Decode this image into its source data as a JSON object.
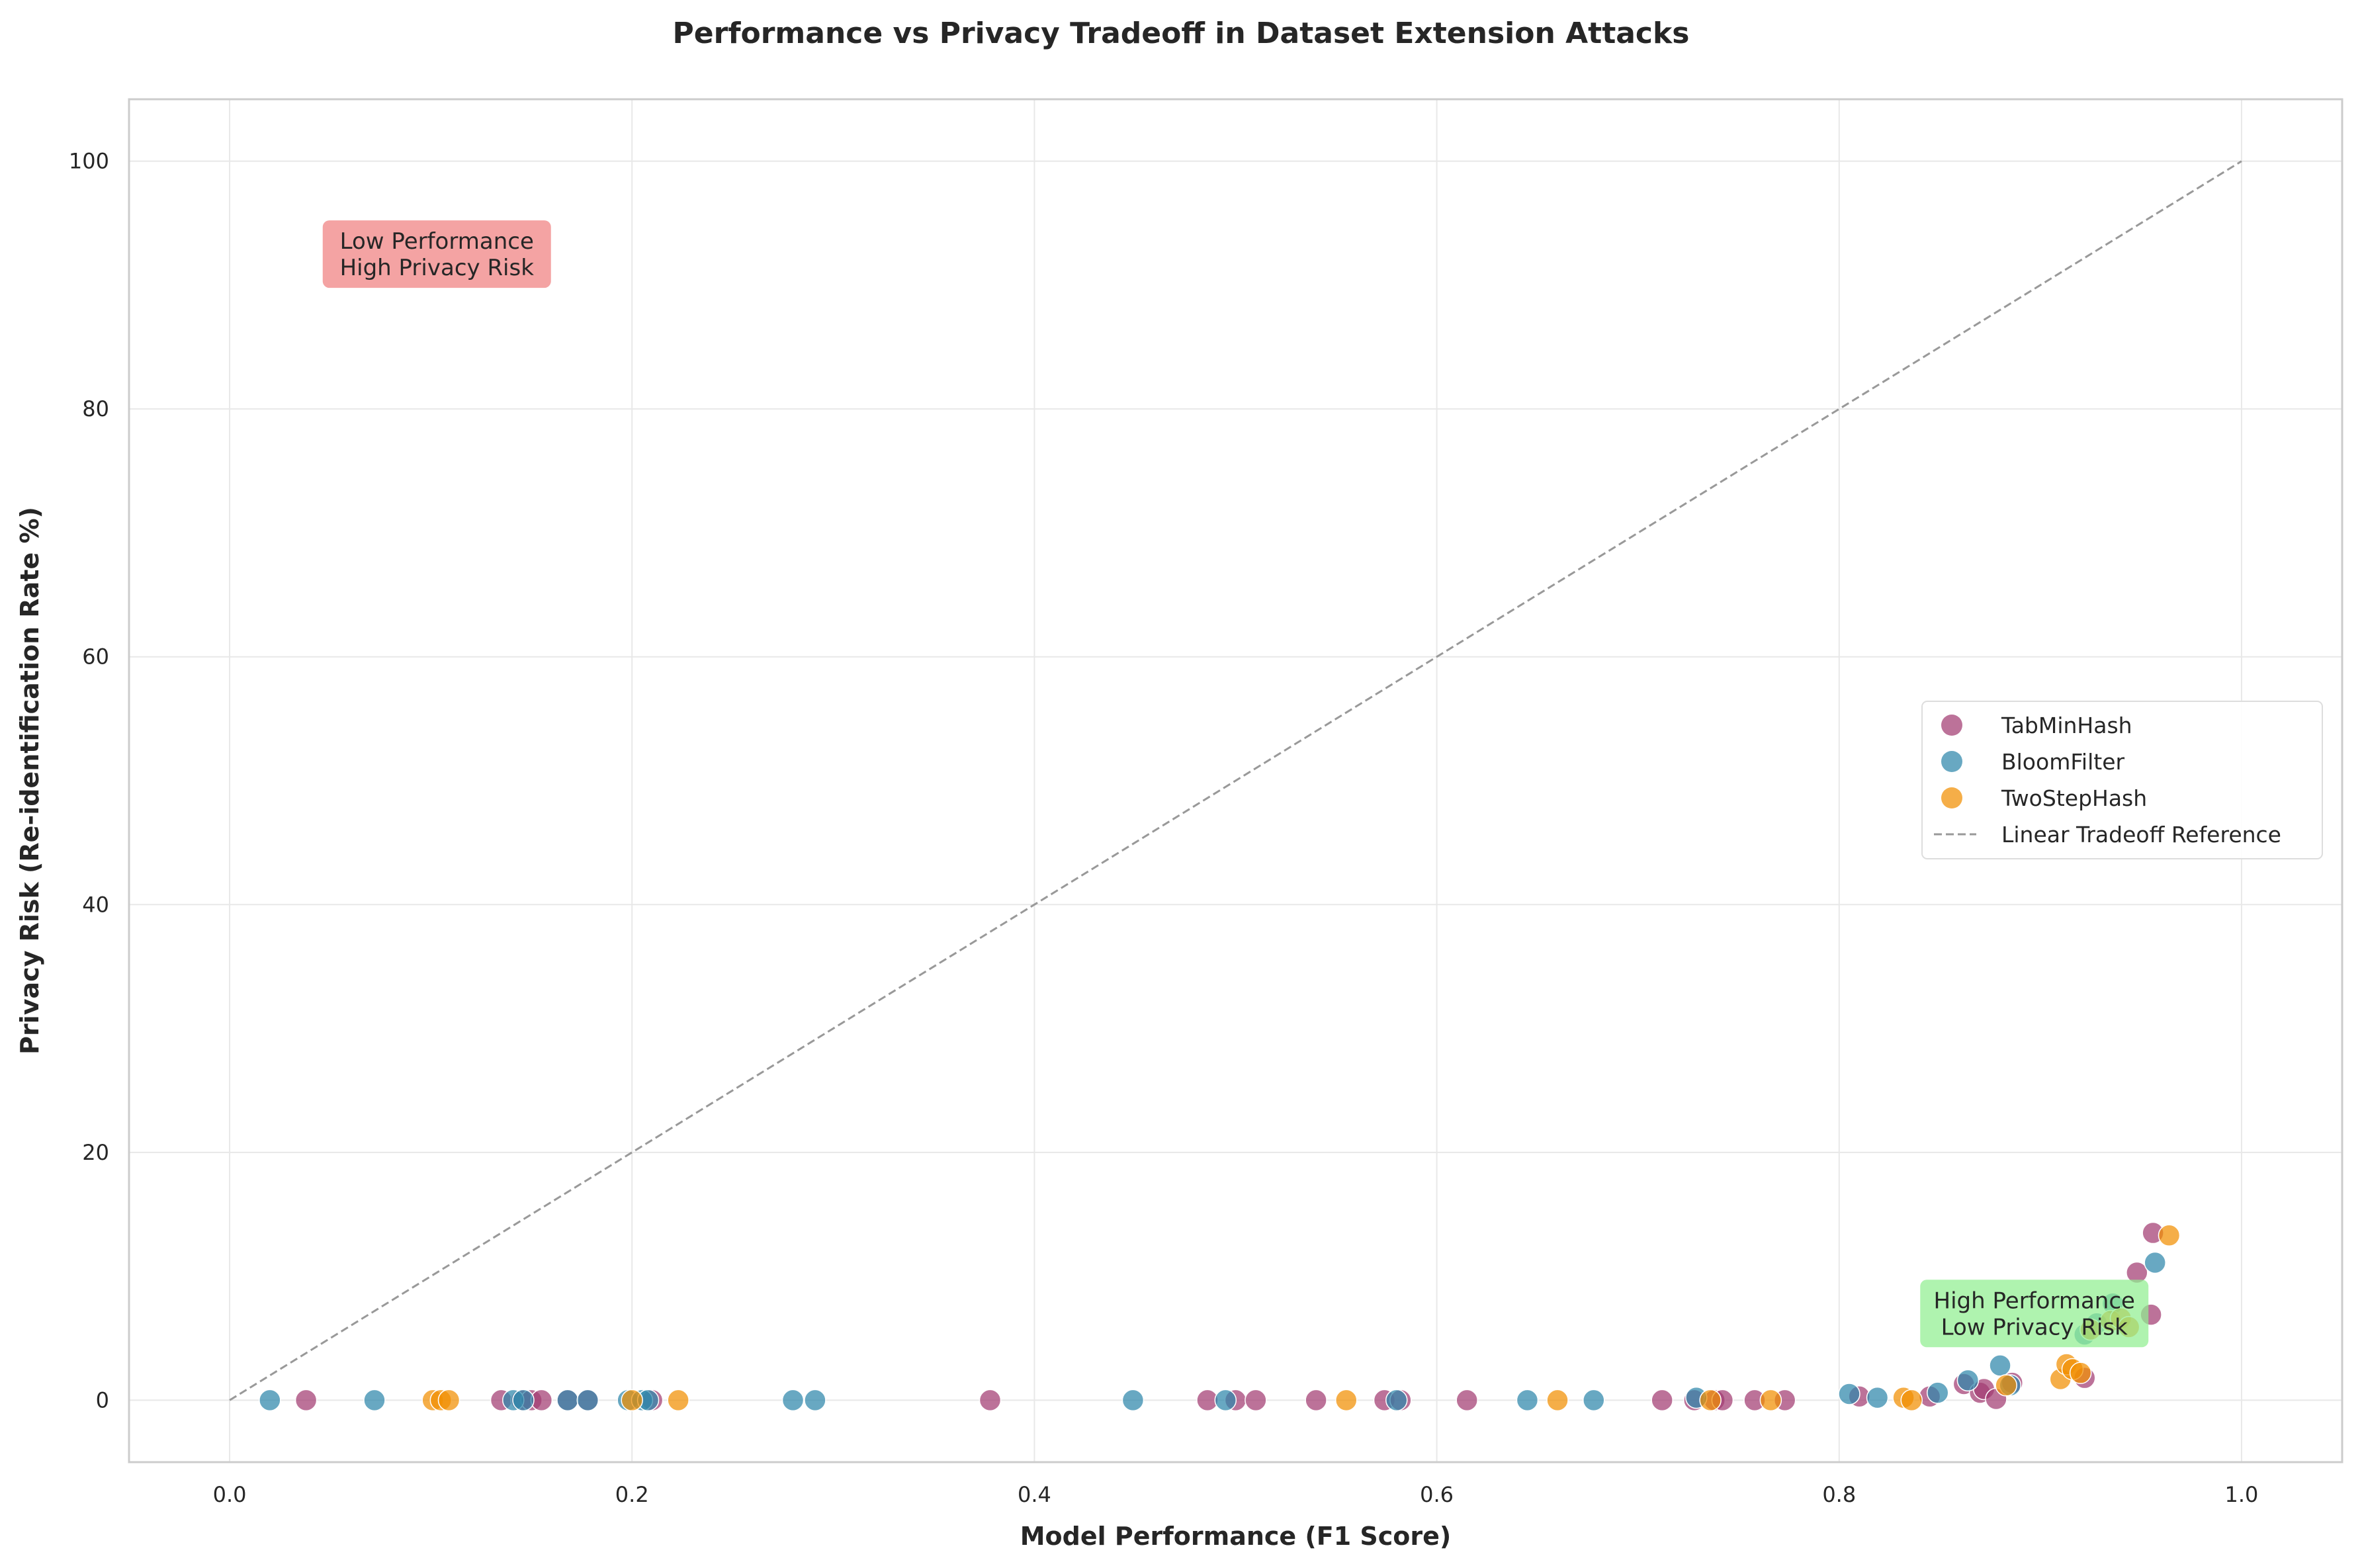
{
  "chart_data": {
    "type": "scatter",
    "title": "Performance vs Privacy Tradeoff in Dataset Extension Attacks",
    "xlabel": "Model Performance (F1 Score)",
    "ylabel": "Privacy Risk (Re-identification Rate %)",
    "xlim": [
      -0.05,
      1.05
    ],
    "ylim": [
      -5,
      105
    ],
    "xticks": [
      0.0,
      0.2,
      0.4,
      0.6,
      0.8,
      1.0
    ],
    "xtick_labels": [
      "0.0",
      "0.2",
      "0.4",
      "0.6",
      "0.8",
      "1.0"
    ],
    "yticks": [
      0,
      20,
      40,
      60,
      80,
      100
    ],
    "ytick_labels": [
      "0",
      "20",
      "40",
      "60",
      "80",
      "100"
    ],
    "grid": true,
    "legend_position": "center-right",
    "series": [
      {
        "name": "TabMinHash",
        "color": "#A23B72",
        "points": [
          [
            0.038,
            0
          ],
          [
            0.135,
            0
          ],
          [
            0.145,
            0
          ],
          [
            0.15,
            0
          ],
          [
            0.155,
            0
          ],
          [
            0.168,
            0
          ],
          [
            0.178,
            0
          ],
          [
            0.21,
            0
          ],
          [
            0.378,
            0
          ],
          [
            0.486,
            0
          ],
          [
            0.5,
            0
          ],
          [
            0.51,
            0
          ],
          [
            0.54,
            0
          ],
          [
            0.574,
            0
          ],
          [
            0.582,
            0
          ],
          [
            0.615,
            0
          ],
          [
            0.712,
            0
          ],
          [
            0.728,
            0
          ],
          [
            0.738,
            0
          ],
          [
            0.742,
            0
          ],
          [
            0.758,
            0
          ],
          [
            0.773,
            0
          ],
          [
            0.81,
            0.3
          ],
          [
            0.845,
            0.3
          ],
          [
            0.862,
            1.3
          ],
          [
            0.87,
            0.6
          ],
          [
            0.872,
            0.9
          ],
          [
            0.878,
            0.1
          ],
          [
            0.886,
            1.4
          ],
          [
            0.922,
            1.8
          ],
          [
            0.948,
            10.3
          ],
          [
            0.955,
            6.9
          ],
          [
            0.956,
            13.5
          ]
        ]
      },
      {
        "name": "BloomFilter",
        "color": "#2E86AB",
        "points": [
          [
            0.02,
            0
          ],
          [
            0.072,
            0
          ],
          [
            0.141,
            0
          ],
          [
            0.146,
            0
          ],
          [
            0.168,
            0
          ],
          [
            0.178,
            0
          ],
          [
            0.198,
            0
          ],
          [
            0.205,
            0
          ],
          [
            0.208,
            0
          ],
          [
            0.28,
            0
          ],
          [
            0.291,
            0
          ],
          [
            0.449,
            0
          ],
          [
            0.495,
            0
          ],
          [
            0.58,
            0
          ],
          [
            0.645,
            0
          ],
          [
            0.678,
            0
          ],
          [
            0.729,
            0.2
          ],
          [
            0.805,
            0.5
          ],
          [
            0.819,
            0.2
          ],
          [
            0.849,
            0.6
          ],
          [
            0.864,
            1.6
          ],
          [
            0.88,
            2.8
          ],
          [
            0.885,
            1.2
          ],
          [
            0.922,
            5.3
          ],
          [
            0.928,
            6.2
          ],
          [
            0.936,
            7.8
          ],
          [
            0.957,
            11.1
          ]
        ]
      },
      {
        "name": "TwoStepHash",
        "color": "#F18F01",
        "points": [
          [
            0.101,
            0
          ],
          [
            0.105,
            0
          ],
          [
            0.109,
            0
          ],
          [
            0.2,
            0
          ],
          [
            0.223,
            0
          ],
          [
            0.555,
            0
          ],
          [
            0.66,
            0
          ],
          [
            0.736,
            0
          ],
          [
            0.766,
            0
          ],
          [
            0.832,
            0.2
          ],
          [
            0.836,
            0
          ],
          [
            0.883,
            1.2
          ],
          [
            0.91,
            1.7
          ],
          [
            0.913,
            2.9
          ],
          [
            0.916,
            2.5
          ],
          [
            0.92,
            2.2
          ],
          [
            0.925,
            5.7
          ],
          [
            0.935,
            6.4
          ],
          [
            0.94,
            6.6
          ],
          [
            0.944,
            5.9
          ],
          [
            0.964,
            13.3
          ]
        ]
      }
    ],
    "reference_line": {
      "name": "Linear Tradeoff Reference",
      "color": "#999999",
      "style": "dashed",
      "points": [
        [
          0,
          0
        ],
        [
          1,
          100
        ]
      ]
    },
    "annotations": [
      {
        "text_lines": [
          "Low Performance",
          "High Privacy Risk"
        ],
        "x": 0.103,
        "y": 92.5,
        "color": "#F08080"
      },
      {
        "text_lines": [
          "High Performance",
          "Low Privacy Risk"
        ],
        "x": 0.897,
        "y": 7,
        "color": "#90EE90"
      }
    ]
  }
}
